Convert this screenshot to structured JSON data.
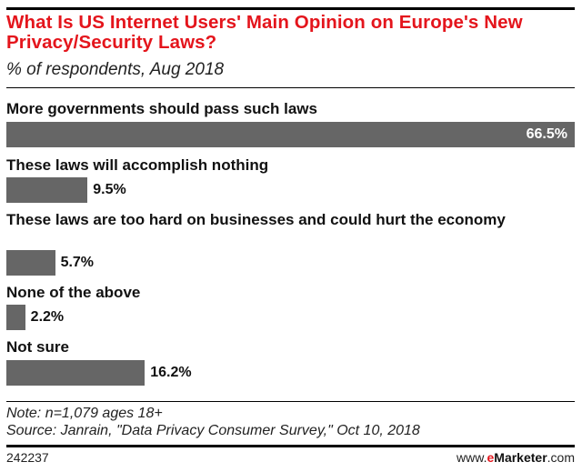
{
  "chart_data": {
    "type": "bar",
    "orientation": "horizontal",
    "title": "What Is US Internet Users' Main Opinion on Europe's New Privacy/Security Laws?",
    "subtitle": "% of respondents, Aug 2018",
    "categories": [
      "More governments should pass such laws",
      "These laws will accomplish nothing",
      "These laws are too hard on businesses and could hurt the economy",
      "None of the above",
      "Not sure"
    ],
    "values": [
      66.5,
      9.5,
      5.7,
      2.2,
      16.2
    ],
    "value_labels": [
      "66.5%",
      "9.5%",
      "5.7%",
      "2.2%",
      "16.2%"
    ],
    "bar_color": "#666666",
    "title_color": "#e4151c",
    "grid": false
  },
  "footer": {
    "note": "Note: n=1,079 ages 18+",
    "source": "Source: Janrain, \"Data Privacy Consumer Survey,\" Oct 10, 2018",
    "chart_id": "242237",
    "brand_prefix": "www.",
    "brand_e": "e",
    "brand_name": "Marketer",
    "brand_suffix": ".com"
  }
}
